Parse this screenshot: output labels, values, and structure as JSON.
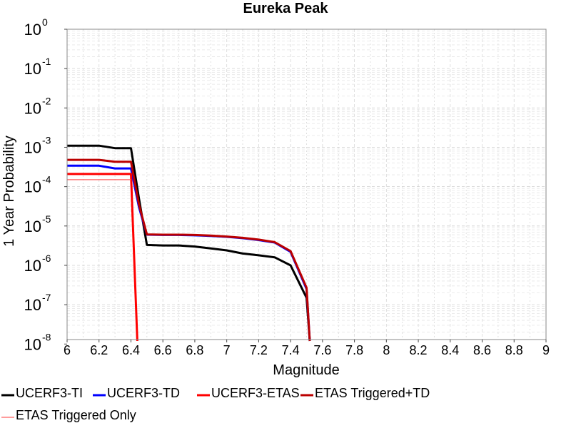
{
  "chart_data": {
    "type": "line",
    "title": "Eureka Peak",
    "xlabel": "Magnitude",
    "ylabel": "1 Year Probability",
    "xlim": [
      6,
      9
    ],
    "ylim": [
      1.3e-08,
      1
    ],
    "y_scale": "log",
    "grid": true,
    "legend_placement": "bottom",
    "x_ticks": [
      "6",
      "6.2",
      "6.4",
      "6.6",
      "6.8",
      "7",
      "7.2",
      "7.4",
      "7.6",
      "7.8",
      "8",
      "8.2",
      "8.4",
      "8.6",
      "8.8",
      "9"
    ],
    "y_ticks": [
      {
        "base": "10",
        "exp": "0"
      },
      {
        "base": "10",
        "exp": "-1"
      },
      {
        "base": "10",
        "exp": "-2"
      },
      {
        "base": "10",
        "exp": "-3"
      },
      {
        "base": "10",
        "exp": "-4"
      },
      {
        "base": "10",
        "exp": "-5"
      },
      {
        "base": "10",
        "exp": "-6"
      },
      {
        "base": "10",
        "exp": "-7"
      },
      {
        "base": "10",
        "exp": "-8"
      }
    ],
    "series": [
      {
        "name": "UCERF3-TI",
        "color": "#000000",
        "width": 3,
        "x": [
          6.0,
          6.1,
          6.2,
          6.3,
          6.4,
          6.45,
          6.5,
          6.6,
          6.7,
          6.8,
          6.9,
          7.0,
          7.1,
          7.2,
          7.3,
          7.4,
          7.5,
          7.52
        ],
        "y": [
          0.0011,
          0.0011,
          0.0011,
          0.00095,
          0.00095,
          5e-05,
          3.3e-06,
          3.2e-06,
          3.2e-06,
          3e-06,
          2.7e-06,
          2.4e-06,
          2e-06,
          1.8e-06,
          1.6e-06,
          1e-06,
          1.5e-07,
          1e-09
        ]
      },
      {
        "name": "UCERF3-TD",
        "color": "#0000ff",
        "width": 3,
        "x": [
          6.0,
          6.1,
          6.2,
          6.3,
          6.4,
          6.45,
          6.5,
          6.6,
          6.7,
          6.8,
          6.9,
          7.0,
          7.1,
          7.2,
          7.3,
          7.4,
          7.5,
          7.52
        ],
        "y": [
          0.00034,
          0.00034,
          0.00034,
          0.00029,
          0.00029,
          3e-05,
          6e-06,
          5.9e-06,
          5.9e-06,
          5.8e-06,
          5.6e-06,
          5.3e-06,
          4.9e-06,
          4.4e-06,
          3.8e-06,
          2.2e-06,
          2.5e-07,
          1e-09
        ]
      },
      {
        "name": "UCERF3-ETAS",
        "color": "#ff0000",
        "width": 3,
        "x": [
          6.0,
          6.1,
          6.2,
          6.3,
          6.4,
          6.44
        ],
        "y": [
          0.00021,
          0.00021,
          0.00021,
          0.00021,
          0.00021,
          1e-09
        ]
      },
      {
        "name": "ETAS Triggered+TD",
        "color": "#bb0000",
        "width": 3,
        "x": [
          6.0,
          6.1,
          6.2,
          6.3,
          6.4,
          6.45,
          6.5,
          6.6,
          6.7,
          6.8,
          6.9,
          7.0,
          7.1,
          7.2,
          7.3,
          7.4,
          7.5,
          7.52
        ],
        "y": [
          0.00048,
          0.00048,
          0.00048,
          0.00043,
          0.00043,
          3.5e-05,
          6.1e-06,
          6e-06,
          6e-06,
          5.9e-06,
          5.7e-06,
          5.4e-06,
          5e-06,
          4.5e-06,
          3.9e-06,
          2.3e-06,
          2.7e-07,
          1e-09
        ]
      },
      {
        "name": "ETAS Triggered Only",
        "color": "#ff6060",
        "width": 1.2,
        "x": [
          6.0,
          6.1,
          6.2,
          6.3,
          6.4
        ],
        "y": [
          0.00015,
          0.00015,
          0.00015,
          0.00015,
          0.00015
        ]
      }
    ]
  },
  "legend": [
    {
      "label": "UCERF3-TI",
      "color": "#000000",
      "thick": true
    },
    {
      "label": "UCERF3-TD",
      "color": "#0000ff",
      "thick": true
    },
    {
      "label": "UCERF3-ETAS",
      "color": "#ff0000",
      "thick": true
    },
    {
      "label": "ETAS Triggered+TD",
      "color": "#bb0000",
      "thick": true
    },
    {
      "label": "ETAS Triggered Only",
      "color": "#ff6060",
      "thick": false
    }
  ]
}
